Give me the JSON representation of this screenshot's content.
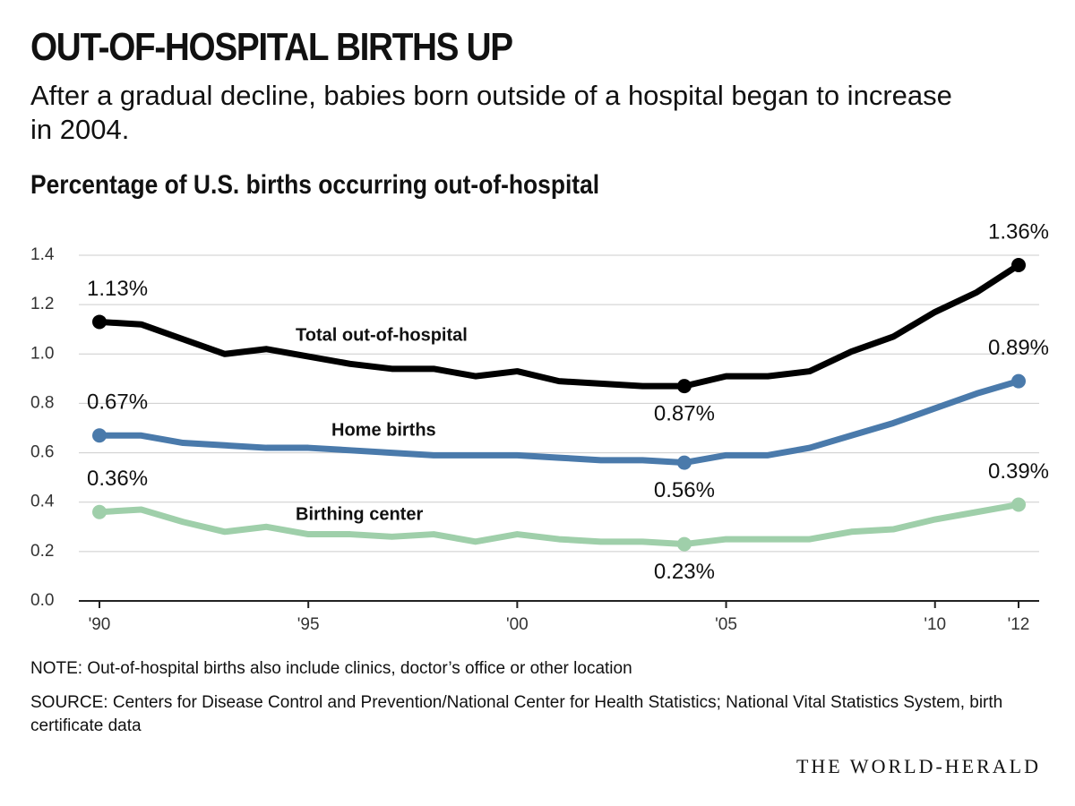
{
  "chart_data": {
    "type": "line",
    "title": "OUT-OF-HOSPITAL BIRTHS UP",
    "subtitle": "After a gradual decline, babies born outside of a hospital began to increase in 2004.",
    "chart_title": "Percentage of U.S. births occurring out-of-hospital",
    "note": "NOTE: Out-of-hospital births also include clinics, doctor’s office or other location",
    "source": "SOURCE: Centers for Disease Control and Prevention/National Center for Health Statistics; National Vital Statistics System, birth certificate data",
    "credit": "THE WORLD-HERALD",
    "x": [
      1990,
      1991,
      1992,
      1993,
      1994,
      1995,
      1996,
      1997,
      1998,
      1999,
      2000,
      2001,
      2002,
      2003,
      2004,
      2005,
      2006,
      2007,
      2008,
      2009,
      2010,
      2011,
      2012
    ],
    "series": [
      {
        "name": "Total out-of-hospital",
        "color": "#000000",
        "values": [
          1.13,
          1.12,
          1.06,
          1.0,
          1.02,
          0.99,
          0.96,
          0.94,
          0.94,
          0.91,
          0.93,
          0.89,
          0.88,
          0.87,
          0.87,
          0.91,
          0.91,
          0.93,
          1.01,
          1.07,
          1.17,
          1.25,
          1.36
        ],
        "value_labels": [
          "1.13%",
          null,
          null,
          null,
          null,
          null,
          null,
          null,
          null,
          null,
          null,
          null,
          null,
          null,
          "0.87%",
          null,
          null,
          null,
          null,
          null,
          null,
          null,
          "1.36%"
        ]
      },
      {
        "name": "Home births",
        "color": "#4a7aab",
        "values": [
          0.67,
          0.67,
          0.64,
          0.63,
          0.62,
          0.62,
          0.61,
          0.6,
          0.59,
          0.59,
          0.59,
          0.58,
          0.57,
          0.57,
          0.56,
          0.59,
          0.59,
          0.62,
          0.67,
          0.72,
          0.78,
          0.84,
          0.89
        ],
        "value_labels": [
          "0.67%",
          null,
          null,
          null,
          null,
          null,
          null,
          null,
          null,
          null,
          null,
          null,
          null,
          null,
          "0.56%",
          null,
          null,
          null,
          null,
          null,
          null,
          null,
          "0.89%"
        ]
      },
      {
        "name": "Birthing center",
        "color": "#9fcfaa",
        "values": [
          0.36,
          0.37,
          0.32,
          0.28,
          0.3,
          0.27,
          0.27,
          0.26,
          0.27,
          0.24,
          0.27,
          0.25,
          0.24,
          0.24,
          0.23,
          0.25,
          0.25,
          0.25,
          0.28,
          0.29,
          0.33,
          0.36,
          0.39
        ],
        "value_labels": [
          "0.36%",
          null,
          null,
          null,
          null,
          null,
          null,
          null,
          null,
          null,
          null,
          null,
          null,
          null,
          "0.23%",
          null,
          null,
          null,
          null,
          null,
          null,
          null,
          "0.39%"
        ]
      }
    ],
    "xlim": [
      1990,
      2012
    ],
    "xticks": [
      {
        "value": 1990,
        "label": "'90"
      },
      {
        "value": 1995,
        "label": "'95"
      },
      {
        "value": 2000,
        "label": "'00"
      },
      {
        "value": 2005,
        "label": "'05"
      },
      {
        "value": 2010,
        "label": "'10"
      },
      {
        "value": 2012,
        "label": "'12"
      }
    ],
    "ylim": [
      0,
      1.4
    ],
    "yticks": [
      {
        "value": 0,
        "label": "0.0"
      },
      {
        "value": 0.2,
        "label": "0.2"
      },
      {
        "value": 0.4,
        "label": "0.4"
      },
      {
        "value": 0.6,
        "label": "0.6"
      },
      {
        "value": 0.8,
        "label": "0.8"
      },
      {
        "value": 1,
        "label": "1.0"
      },
      {
        "value": 1.2,
        "label": "1.2"
      },
      {
        "value": 1.4,
        "label": "1.4"
      }
    ],
    "grid": true
  }
}
